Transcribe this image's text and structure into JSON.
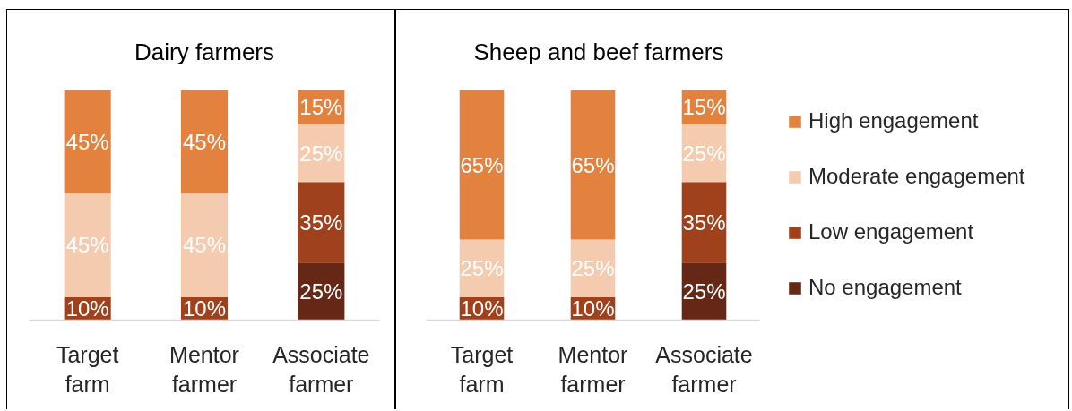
{
  "chart_data": [
    {
      "type": "bar",
      "title": "Dairy farmers",
      "categories": [
        "Target farm",
        "Mentor farmer",
        "Associate farmer"
      ],
      "stacked": true,
      "ylim": [
        0,
        100
      ],
      "tick_labels": "x",
      "series": [
        {
          "color": "#652816",
          "values": [
            null,
            null,
            25
          ],
          "value_labels": [
            null,
            null,
            "25%"
          ]
        },
        {
          "color": "#a0411e",
          "values": [
            10,
            10,
            35
          ],
          "value_labels": [
            "10%",
            "10%",
            "35%"
          ]
        },
        {
          "color": "#f5cbaf",
          "values": [
            45,
            45,
            25
          ],
          "value_labels": [
            "45%",
            "45%",
            "25%"
          ]
        },
        {
          "color": "#e3823f",
          "values": [
            45,
            45,
            15
          ],
          "value_labels": [
            "45%",
            "45%",
            "15%"
          ]
        }
      ]
    },
    {
      "type": "bar",
      "title": "Sheep and beef farmers",
      "categories": [
        "Target farm",
        "Mentor farmer",
        "Associate farmer"
      ],
      "stacked": true,
      "ylim": [
        0,
        100
      ],
      "tick_labels": "x",
      "legend": "right",
      "series": [
        {
          "name": "No engagement",
          "color": "#652816",
          "values": [
            null,
            null,
            25
          ],
          "value_labels": [
            null,
            null,
            "25%"
          ]
        },
        {
          "name": "Low engagement",
          "color": "#a0411e",
          "values": [
            10,
            10,
            35
          ],
          "value_labels": [
            "10%",
            "10%",
            "35%"
          ]
        },
        {
          "name": "Moderate engagement",
          "color": "#f5cbaf",
          "values": [
            25,
            25,
            25
          ],
          "value_labels": [
            "25%",
            "25%",
            "25%"
          ]
        },
        {
          "name": "High engagement",
          "color": "#e3823f",
          "values": [
            65,
            65,
            15
          ],
          "value_labels": [
            "65%",
            "65%",
            "15%"
          ]
        }
      ]
    }
  ]
}
